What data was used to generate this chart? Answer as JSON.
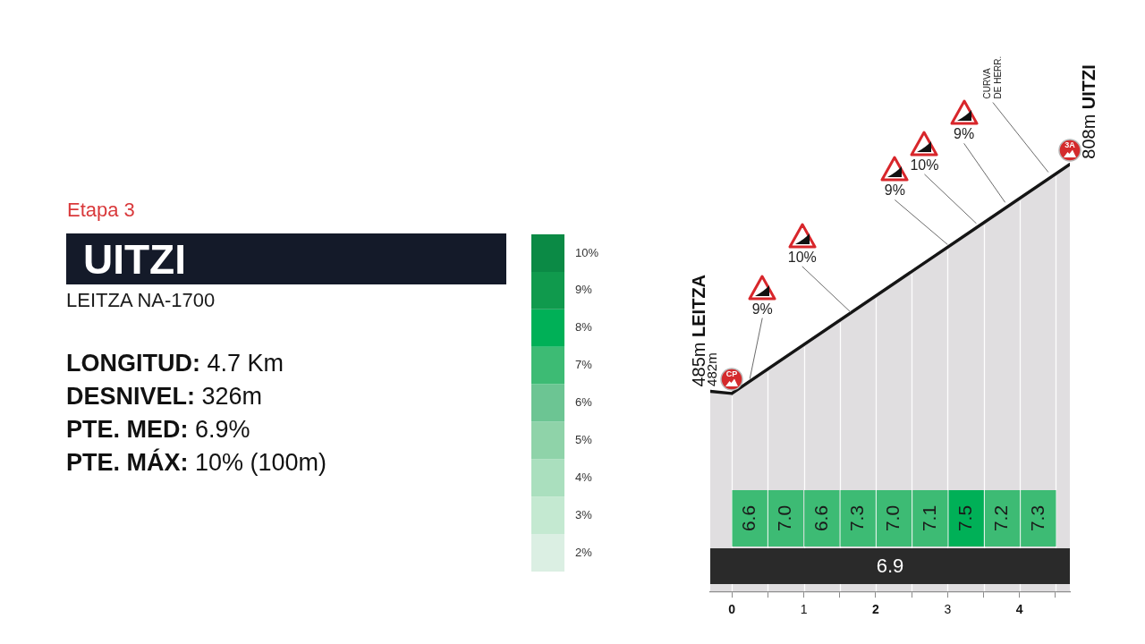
{
  "chart_data": [
    {
      "type": "area",
      "x": [
        -0.3,
        0,
        4.7
      ],
      "values": [
        485,
        482,
        808
      ],
      "value_labels": [
        "485m LEITZA",
        "482m",
        "808m UITZI"
      ],
      "color": "#e0dee0",
      "xlim": [
        -0.3,
        4.7
      ],
      "xticks": [
        0,
        {
          "value": 0.5,
          "label": null
        },
        1,
        {
          "value": 1.5,
          "label": null
        },
        2,
        {
          "value": 2.5,
          "label": null
        },
        3,
        {
          "value": 3.5,
          "label": null
        },
        4,
        {
          "value": 4.5,
          "label": null
        }
      ],
      "tick_labels": "x",
      "grid": "x",
      "annotations": [
        "Etapa 3",
        "UITZI",
        "LEITZA NA-1700",
        "LONGITUD: 4.7 Km",
        "DESNIVEL: 326m",
        "PTE. MED: 6.9%",
        "PTE. MÁX: 10% (100m)",
        {
          "text": "9%",
          "x": 0.25,
          "y": 499
        },
        {
          "text": "10%",
          "x": 1.65,
          "y": 594
        },
        {
          "text": "9%",
          "x": 3.0,
          "y": 690
        },
        {
          "text": "10%",
          "x": 3.4,
          "y": 720
        },
        {
          "text": "9%",
          "x": 3.8,
          "y": 750
        },
        {
          "text": "CURVA DE HERR.",
          "x": 4.4,
          "y": 793
        },
        {
          "text": "CP",
          "x": 0,
          "y": 482
        },
        {
          "text": "3A",
          "x": 4.7,
          "y": 808
        }
      ]
    },
    {
      "type": "heatmap",
      "categories": [
        null,
        null,
        null,
        null,
        null,
        null,
        null,
        null,
        null
      ],
      "y_categories": [
        null
      ],
      "cells": [
        [
          6.6,
          7.0,
          6.6,
          7.3,
          7.0,
          7.1,
          7.5,
          7.2,
          7.3
        ]
      ],
      "cell_labels": [
        [
          "6.6",
          "7.0",
          "6.6",
          "7.3",
          "7.0",
          "7.1",
          "7.5",
          "7.2",
          "7.3"
        ]
      ],
      "clim": [
        1.5,
        10.5
      ],
      "cticks": [
        {
          "value": 2,
          "label": "2%"
        },
        {
          "value": 3,
          "label": "3%"
        },
        {
          "value": 4,
          "label": "4%"
        },
        {
          "value": 5,
          "label": "5%"
        },
        {
          "value": 6,
          "label": "6%"
        },
        {
          "value": 7,
          "label": "7%"
        },
        {
          "value": 8,
          "label": "8%"
        },
        {
          "value": 9,
          "label": "9%"
        },
        {
          "value": 10,
          "label": "10%"
        }
      ],
      "colors": [
        "#dbefe3",
        "#c4e9d1",
        "#aadfbe",
        "#8fd3a9",
        "#6cc593",
        "#3dbb74",
        "#00b057",
        "#109a4d",
        "#0b8a45"
      ],
      "annotations": [
        "6.9"
      ]
    }
  ]
}
